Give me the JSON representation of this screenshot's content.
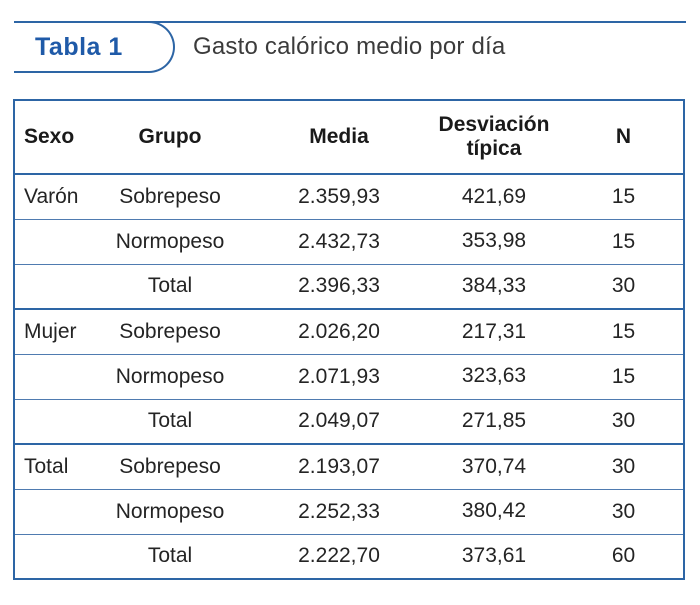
{
  "page": {
    "badge_label": "Tabla 1",
    "title": "Gasto calórico medio por día"
  },
  "colors": {
    "line-blue": "#2d65a5",
    "row-line": "#4f7bb0",
    "badge-blue": "#1f5aa8",
    "title-gray": "#3b3b3b",
    "text-dark": "#242424"
  },
  "table": {
    "columns": [
      {
        "label": "Sexo"
      },
      {
        "label": "Grupo"
      },
      {
        "label": "Media"
      },
      {
        "label": "Desviación típica"
      },
      {
        "label": "N"
      }
    ],
    "rows": [
      {
        "sexo": "Varón",
        "grupo": "Sobrepeso",
        "media": "2.359,93",
        "desviacion": "421,69",
        "n": "15"
      },
      {
        "sexo": "",
        "grupo": "Normopeso",
        "media": "2.432,73",
        "desviacion": "353,98",
        "n": "15"
      },
      {
        "sexo": "",
        "grupo": "Total",
        "media": "2.396,33",
        "desviacion": "384,33",
        "n": "30"
      },
      {
        "sexo": "Mujer",
        "grupo": "Sobrepeso",
        "media": "2.026,20",
        "desviacion": "217,31",
        "n": "15"
      },
      {
        "sexo": "",
        "grupo": "Normopeso",
        "media": "2.071,93",
        "desviacion": "323,63",
        "n": "15"
      },
      {
        "sexo": "",
        "grupo": "Total",
        "media": "2.049,07",
        "desviacion": "271,85",
        "n": "30"
      },
      {
        "sexo": "Total",
        "grupo": "Sobrepeso",
        "media": "2.193,07",
        "desviacion": "370,74",
        "n": "30"
      },
      {
        "sexo": "",
        "grupo": "Normopeso",
        "media": "2.252,33",
        "desviacion": "380,42",
        "n": "30"
      },
      {
        "sexo": "",
        "grupo": "Total",
        "media": "2.222,70",
        "desviacion": "373,61",
        "n": "60"
      }
    ]
  }
}
